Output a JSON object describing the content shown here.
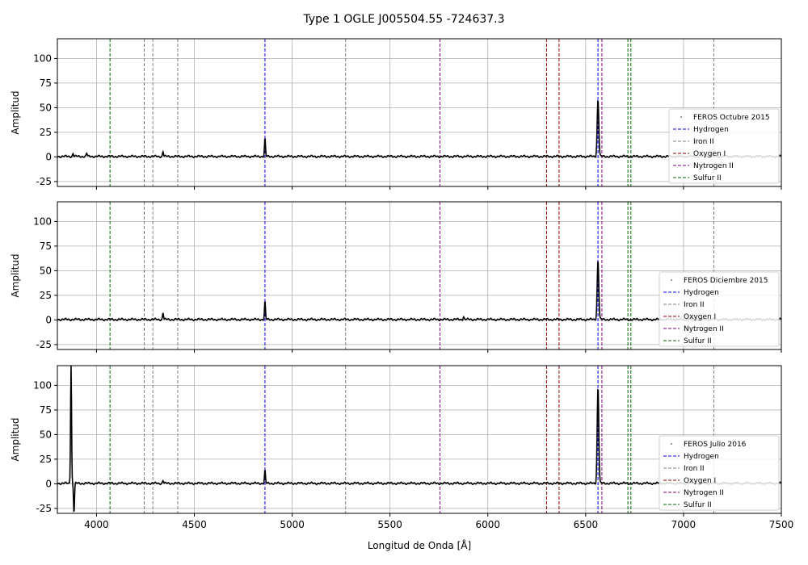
{
  "chart_data": {
    "type": "line",
    "title": "Type 1 OGLE J005504.55 -724637.3",
    "xlabel": "Longitud de Onda [Å]",
    "ylabel": "Amplitud",
    "xlim": [
      3800,
      7500
    ],
    "ylim": [
      -30,
      120
    ],
    "xticks": [
      4000,
      4500,
      5000,
      5500,
      6000,
      6500,
      7000,
      7500
    ],
    "yticks": [
      -25,
      0,
      25,
      50,
      75,
      100
    ],
    "grid": true,
    "legend_position": "lower-right",
    "line_types": [
      {
        "name": "Hydrogen",
        "color": "#0000ff",
        "wavelengths": [
          4861,
          6563
        ]
      },
      {
        "name": "Iron II",
        "color": "#808080",
        "wavelengths": [
          4244,
          4288,
          4415,
          5273,
          7155
        ]
      },
      {
        "name": "Oxygen I",
        "color": "#8b0000",
        "wavelengths": [
          6300,
          6364
        ]
      },
      {
        "name": "Nytrogen II",
        "color": "#800080",
        "wavelengths": [
          5755,
          6583
        ]
      },
      {
        "name": "Sulfur II",
        "color": "#006400",
        "wavelengths": [
          4069,
          6716,
          6731
        ]
      }
    ],
    "panels": [
      {
        "series_name": "FEROS Octubre 2015",
        "baseline": 0.5,
        "peaks": [
          [
            4861,
            18
          ],
          [
            4340,
            5
          ],
          [
            6563,
            58
          ],
          [
            3880,
            3
          ],
          [
            3950,
            3
          ]
        ]
      },
      {
        "series_name": "FEROS Diciembre 2015",
        "baseline": 0.5,
        "peaks": [
          [
            4861,
            18
          ],
          [
            4340,
            7
          ],
          [
            6563,
            60
          ],
          [
            5876,
            3
          ]
        ]
      },
      {
        "series_name": "FEROS Julio 2016",
        "baseline": 0.5,
        "peaks": [
          [
            4861,
            13
          ],
          [
            4340,
            3
          ],
          [
            6563,
            98
          ],
          [
            3870,
            120
          ],
          [
            3885,
            -30
          ]
        ]
      }
    ]
  }
}
